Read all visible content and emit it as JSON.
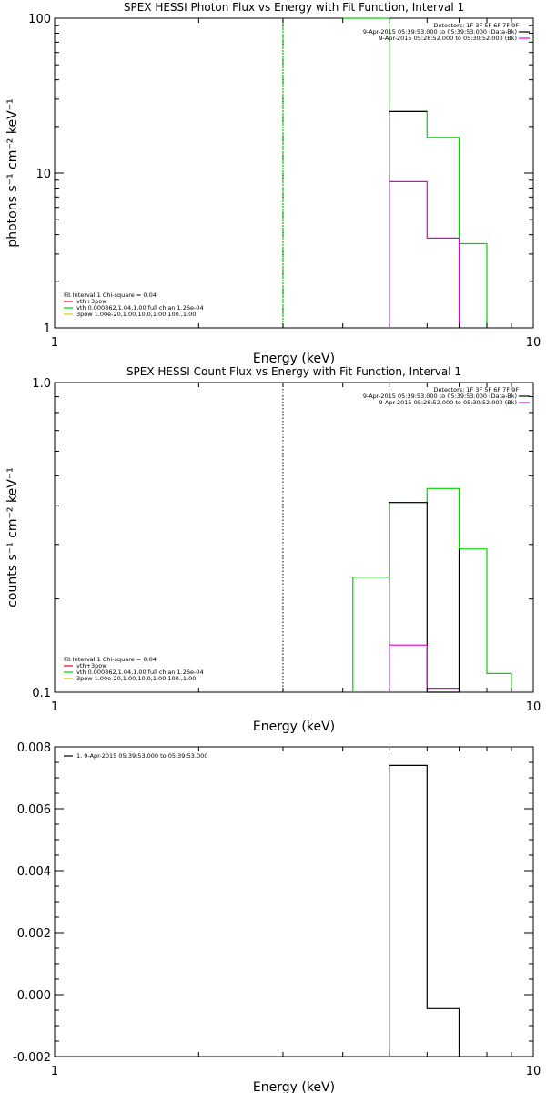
{
  "colors": {
    "black": "#000000",
    "red": "#e8001e",
    "green": "#00d200",
    "magenta": "#dd00dd",
    "yellow": "#e6c800"
  },
  "chart_data": [
    {
      "type": "line",
      "title": "SPEX HESSI Photon Flux vs Energy with Fit Function, Interval 1",
      "xlabel": "Energy (keV)",
      "ylabel": "photons s⁻¹ cm⁻² keV⁻¹",
      "xscale": "log",
      "yscale": "log",
      "xlim": [
        1,
        10
      ],
      "ylim": [
        1,
        100
      ],
      "xticks": [
        {
          "v": 1,
          "label": "1"
        },
        {
          "v": 10,
          "label": "10"
        }
      ],
      "yticks": [
        {
          "v": 1,
          "label": "1"
        },
        {
          "v": 10,
          "label": "10"
        },
        {
          "v": 100,
          "label": "100"
        }
      ],
      "vline": {
        "x": 3,
        "style": "dotted"
      },
      "legend_right": {
        "position": "top-right",
        "header": "Detectors: 1F 3F 5F 6F 7F 9F",
        "entries": [
          {
            "text": "9-Apr-2015 05:39:53.000 to 05:39:53.000 (Data-Bk)",
            "color": "black"
          },
          {
            "text": "9-Apr-2015 05:28:52.000 to 05:30:52.000 (Bk)",
            "color": "magenta"
          }
        ]
      },
      "legend_left": {
        "position": "bottom-left",
        "header": "Fit Interval 1    Chi-square = 0.04",
        "entries": [
          {
            "text": "vth+3pow",
            "color": "red"
          },
          {
            "text": "vth 0.000862,1.04,1.00  full chian 1.26e-04",
            "color": "green"
          },
          {
            "text": "3pow 1.00e-20,1.00,10.0,1.00,100.,1.00",
            "color": "yellow"
          }
        ]
      },
      "series": [
        {
          "color": "green",
          "style": "dashed",
          "x": [
            3.0,
            3.0
          ],
          "y": [
            1,
            100
          ]
        },
        {
          "color": "green",
          "x": [
            4.0,
            4.0,
            5.0,
            5.0,
            6.0,
            6.0,
            7.0,
            7.0,
            8.0,
            8.0
          ],
          "y": [
            100,
            100,
            100,
            25,
            25,
            17,
            17,
            3.5,
            3.5,
            1
          ]
        },
        {
          "color": "black",
          "x": [
            5.0,
            5.0,
            6.0
          ],
          "y": [
            1,
            25,
            25
          ]
        },
        {
          "color": "magenta",
          "x": [
            5.0,
            5.0,
            6.0,
            6.0,
            7.0,
            7.0
          ],
          "y": [
            1,
            8.8,
            8.8,
            3.8,
            3.8,
            1
          ]
        }
      ]
    },
    {
      "type": "line",
      "title": "SPEX HESSI Count Flux vs Energy with Fit Function, Interval 1",
      "xlabel": "Energy (keV)",
      "ylabel": "counts s⁻¹ cm⁻² keV⁻¹",
      "xscale": "log",
      "yscale": "log",
      "xlim": [
        1,
        10
      ],
      "ylim": [
        0.1,
        1.0
      ],
      "xticks": [
        {
          "v": 1,
          "label": "1"
        },
        {
          "v": 10,
          "label": "10"
        }
      ],
      "yticks": [
        {
          "v": 0.1,
          "label": "0.1"
        },
        {
          "v": 1.0,
          "label": "1.0"
        }
      ],
      "vline": {
        "x": 3,
        "style": "dotted"
      },
      "legend_right": {
        "position": "top-right",
        "header": "Detectors: 1F 3F 5F 6F 7F 9F",
        "entries": [
          {
            "text": "9-Apr-2015 05:39:53.000 to 05:39:53.000 (Data-Bk)",
            "color": "black"
          },
          {
            "text": "9-Apr-2015 05:28:52.000 to 05:30:52.000 (Bk)",
            "color": "magenta"
          }
        ]
      },
      "legend_left": {
        "position": "bottom-left",
        "header": "Fit Interval 1    Chi-square = 0.04",
        "entries": [
          {
            "text": "vth+3pow",
            "color": "red"
          },
          {
            "text": "vth 0.000862,1.04,1.00  full chian 1.26e-04",
            "color": "green"
          },
          {
            "text": "3pow 1.00e-20,1.00,10.0,1.00,100.,1.00",
            "color": "yellow"
          }
        ]
      },
      "series": [
        {
          "color": "green",
          "x": [
            4.2,
            4.2,
            5.0,
            5.0,
            6.0,
            6.0,
            7.0,
            7.0,
            8.0,
            8.0,
            9.0,
            9.0
          ],
          "y": [
            0.1,
            0.235,
            0.235,
            0.41,
            0.41,
            0.455,
            0.455,
            0.29,
            0.29,
            0.115,
            0.115,
            0.1
          ]
        },
        {
          "color": "black",
          "x": [
            5.0,
            5.0,
            6.0,
            6.0,
            7.0,
            7.0
          ],
          "y": [
            0.1,
            0.41,
            0.41,
            0.1,
            0.1,
            0.29
          ]
        },
        {
          "color": "magenta",
          "x": [
            5.0,
            5.0,
            6.0,
            6.0,
            7.0,
            7.0
          ],
          "y": [
            0.1,
            0.142,
            0.142,
            0.103,
            0.103,
            0.1
          ]
        }
      ]
    },
    {
      "type": "line",
      "title": "",
      "xlabel": "Energy (keV)",
      "ylabel": "",
      "xscale": "log",
      "yscale": "linear",
      "xlim": [
        1,
        10
      ],
      "ylim": [
        -0.002,
        0.008
      ],
      "xticks": [
        {
          "v": 1,
          "label": "1"
        },
        {
          "v": 10,
          "label": "10"
        }
      ],
      "yticks": [
        {
          "v": -0.002,
          "label": "-0.002"
        },
        {
          "v": 0.0,
          "label": "0.000"
        },
        {
          "v": 0.002,
          "label": "0.002"
        },
        {
          "v": 0.004,
          "label": "0.004"
        },
        {
          "v": 0.006,
          "label": "0.006"
        },
        {
          "v": 0.008,
          "label": "0.008"
        }
      ],
      "legend_right": null,
      "legend_left": {
        "position": "top-left",
        "header": "",
        "entries": [
          {
            "text": "1.  9-Apr-2015 05:39:53.000 to 05:39:53.000",
            "color": "black"
          }
        ]
      },
      "series": [
        {
          "color": "black",
          "x": [
            5.0,
            5.0,
            6.0,
            6.0,
            7.0,
            7.0
          ],
          "y": [
            -0.002,
            0.0074,
            0.0074,
            -0.00045,
            -0.00045,
            -0.002
          ]
        }
      ]
    }
  ]
}
